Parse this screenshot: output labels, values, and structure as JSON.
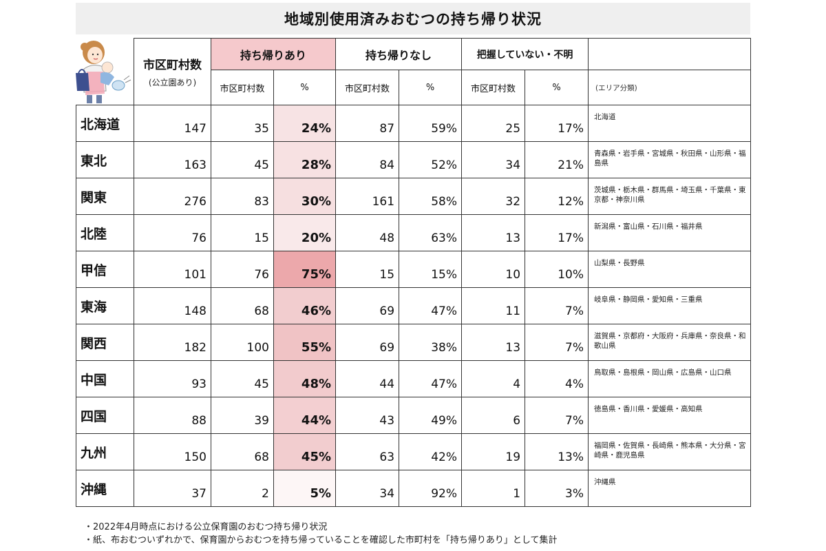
{
  "title": "地域別使用済みおむつの持ち帰り状況",
  "header": {
    "total_label": "市区町村数",
    "total_sub": "(公立園あり)",
    "group_with": "持ち帰りあり",
    "group_without": "持ち帰りなし",
    "group_unknown": "把握していない・不明",
    "sub_count": "市区町村数",
    "sub_pct": "%",
    "area_label": "(エリア分類)"
  },
  "colors": {
    "highlight_header": "#f5c9cc",
    "title_bg": "#efefef"
  },
  "rows": [
    {
      "region": "北海道",
      "total": "147",
      "with_count": "35",
      "with_pct": "24%",
      "without_count": "87",
      "without_pct": "59%",
      "unknown_count": "25",
      "unknown_pct": "17%",
      "area": "北海道",
      "shade": "#f7e3e4"
    },
    {
      "region": "東北",
      "total": "163",
      "with_count": "45",
      "with_pct": "28%",
      "without_count": "84",
      "without_pct": "52%",
      "unknown_count": "34",
      "unknown_pct": "21%",
      "area": "青森県・岩手県・宮城県・秋田県・山形県・福島県",
      "shade": "#f7e1e2"
    },
    {
      "region": "関東",
      "total": "276",
      "with_count": "83",
      "with_pct": "30%",
      "without_count": "161",
      "without_pct": "58%",
      "unknown_count": "32",
      "unknown_pct": "12%",
      "area": "茨城県・栃木県・群馬県・埼玉県・千葉県・東京都・神奈川県",
      "shade": "#f6dfe0"
    },
    {
      "region": "北陸",
      "total": "76",
      "with_count": "15",
      "with_pct": "20%",
      "without_count": "48",
      "without_pct": "63%",
      "unknown_count": "13",
      "unknown_pct": "17%",
      "area": "新潟県・富山県・石川県・福井県",
      "shade": "#f9e9ea"
    },
    {
      "region": "甲信",
      "total": "101",
      "with_count": "76",
      "with_pct": "75%",
      "without_count": "15",
      "without_pct": "15%",
      "unknown_count": "10",
      "unknown_pct": "10%",
      "area": "山梨県・長野県",
      "shade": "#eca8ab"
    },
    {
      "region": "東海",
      "total": "148",
      "with_count": "68",
      "with_pct": "46%",
      "without_count": "69",
      "without_pct": "47%",
      "unknown_count": "11",
      "unknown_pct": "7%",
      "area": "岐阜県・静岡県・愛知県・三重県",
      "shade": "#f2cdcf"
    },
    {
      "region": "関西",
      "total": "182",
      "with_count": "100",
      "with_pct": "55%",
      "without_count": "69",
      "without_pct": "38%",
      "unknown_count": "13",
      "unknown_pct": "7%",
      "area": "滋賀県・京都府・大阪府・兵庫県・奈良県・和歌山県",
      "shade": "#f0c3c5"
    },
    {
      "region": "中国",
      "total": "93",
      "with_count": "45",
      "with_pct": "48%",
      "without_count": "44",
      "without_pct": "47%",
      "unknown_count": "4",
      "unknown_pct": "4%",
      "area": "鳥取県・島根県・岡山県・広島県・山口県",
      "shade": "#f2cbcd"
    },
    {
      "region": "四国",
      "total": "88",
      "with_count": "39",
      "with_pct": "44%",
      "without_count": "43",
      "without_pct": "49%",
      "unknown_count": "6",
      "unknown_pct": "7%",
      "area": "徳島県・香川県・愛媛県・高知県",
      "shade": "#f3cfd1"
    },
    {
      "region": "九州",
      "total": "150",
      "with_count": "68",
      "with_pct": "45%",
      "without_count": "63",
      "without_pct": "42%",
      "unknown_count": "19",
      "unknown_pct": "13%",
      "area": "福岡県・佐賀県・長崎県・熊本県・大分県・宮崎県・鹿児島県",
      "shade": "#f2cdcf"
    },
    {
      "region": "沖縄",
      "total": "37",
      "with_count": "2",
      "with_pct": "5%",
      "without_count": "34",
      "without_pct": "92%",
      "unknown_count": "1",
      "unknown_pct": "3%",
      "area": "沖縄県",
      "shade": "#fdf6f6"
    }
  ],
  "footnotes": [
    "・2022年4月時点における公立保育園のおむつ持ち帰り状況",
    "・紙、布おむついずれかで、保育園からおむつを持ち帰っていることを確認した市町村を「持ち帰りあり」として集計"
  ]
}
